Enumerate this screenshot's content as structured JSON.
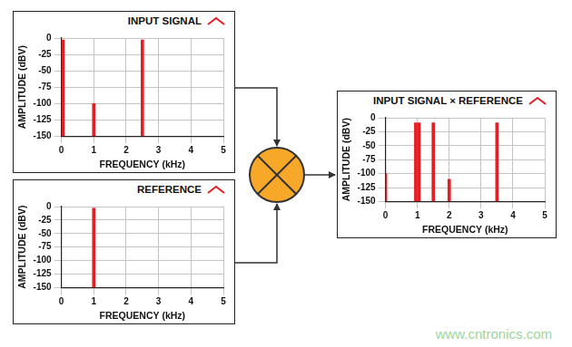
{
  "chart_data": [
    {
      "type": "bar",
      "title": "INPUT SIGNAL",
      "x_label": "FREQUENCY (kHz)",
      "y_label": "AMPLITUDE (dBV)",
      "x": [
        0.05,
        1,
        2.5
      ],
      "values": [
        -3,
        -100,
        -3
      ],
      "color": "#e31e24",
      "xlim": [
        0,
        5
      ],
      "xticks": [
        0,
        1,
        2,
        3,
        4,
        5
      ],
      "ylim": [
        -150,
        0
      ],
      "yticks": [
        -150,
        -125,
        -100,
        -75,
        -50,
        -25,
        0
      ],
      "grid": true
    },
    {
      "type": "bar",
      "title": "REFERENCE",
      "x_label": "FREQUENCY (kHz)",
      "y_label": "AMPLITUDE (dBV)",
      "x": [
        1
      ],
      "values": [
        -3
      ],
      "color": "#e31e24",
      "xlim": [
        0,
        5
      ],
      "xticks": [
        0,
        1,
        2,
        3,
        4,
        5
      ],
      "ylim": [
        -150,
        0
      ],
      "yticks": [
        -150,
        -125,
        -100,
        -75,
        -50,
        -25,
        0
      ],
      "grid": true
    },
    {
      "type": "bar",
      "title": "INPUT SIGNAL × REFERENCE",
      "x_label": "FREQUENCY (kHz)",
      "y_label": "AMPLITUDE (dBV)",
      "x": [
        0,
        0.95,
        1.05,
        1.5,
        2,
        3.5
      ],
      "values": [
        -100,
        -9,
        -9,
        -9,
        -110,
        -9
      ],
      "color": "#e31e24",
      "xlim": [
        0,
        5
      ],
      "xticks": [
        0,
        1,
        2,
        3,
        4,
        5
      ],
      "ylim": [
        -150,
        0
      ],
      "yticks": [
        -150,
        -125,
        -100,
        -75,
        -50,
        -25,
        0
      ],
      "grid": true
    }
  ],
  "watermark": "www.cntronics.com"
}
